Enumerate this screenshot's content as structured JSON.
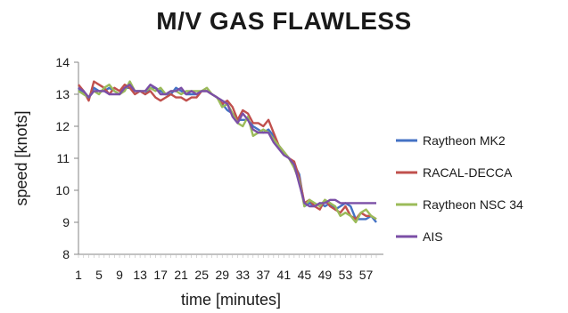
{
  "chart_data": {
    "type": "line",
    "title": "M/V GAS FLAWLESS",
    "xlabel": "time [minutes]",
    "ylabel": "speed [knots]",
    "ylim": [
      8,
      14
    ],
    "yticks": [
      8,
      9,
      10,
      11,
      12,
      13,
      14
    ],
    "xticks": [
      1,
      5,
      9,
      13,
      17,
      21,
      25,
      29,
      33,
      37,
      41,
      45,
      49,
      53,
      57
    ],
    "xlim": [
      1,
      59
    ],
    "grid": false,
    "legend_position": "right",
    "x": [
      1,
      2,
      3,
      4,
      5,
      6,
      7,
      8,
      9,
      10,
      11,
      12,
      13,
      14,
      15,
      16,
      17,
      18,
      19,
      20,
      21,
      22,
      23,
      24,
      25,
      26,
      27,
      28,
      29,
      30,
      31,
      32,
      33,
      34,
      35,
      36,
      37,
      38,
      39,
      40,
      41,
      42,
      43,
      44,
      45,
      46,
      47,
      48,
      49,
      50,
      51,
      52,
      53,
      54,
      55,
      56,
      57,
      58,
      59
    ],
    "series": [
      {
        "name": "Raytheon MK2",
        "color": "#4472c4",
        "values": [
          13.2,
          13.0,
          12.9,
          13.2,
          13.1,
          13.1,
          13.2,
          13.1,
          13.0,
          13.2,
          13.2,
          13.1,
          13.1,
          13.0,
          13.2,
          13.2,
          13.1,
          13.0,
          13.0,
          13.2,
          13.1,
          13.0,
          13.0,
          13.0,
          13.1,
          13.1,
          13.0,
          12.9,
          12.7,
          12.5,
          12.4,
          12.2,
          12.2,
          12.2,
          12.0,
          11.9,
          11.8,
          11.9,
          11.7,
          11.4,
          11.2,
          11.0,
          10.8,
          10.5,
          9.5,
          9.6,
          9.5,
          9.6,
          9.5,
          9.6,
          9.4,
          9.5,
          9.6,
          9.5,
          9.1,
          9.1,
          9.1,
          9.2,
          9.0
        ]
      },
      {
        "name": "RACAL-DECCA",
        "color": "#c0504d",
        "values": [
          13.3,
          13.1,
          12.8,
          13.4,
          13.3,
          13.2,
          13.0,
          13.2,
          13.1,
          13.3,
          13.2,
          13.0,
          13.1,
          13.0,
          13.1,
          12.9,
          12.8,
          12.9,
          13.0,
          12.9,
          12.9,
          12.8,
          12.9,
          12.9,
          13.1,
          13.1,
          13.0,
          12.9,
          12.7,
          12.8,
          12.6,
          12.2,
          12.5,
          12.4,
          12.1,
          12.1,
          12.0,
          12.2,
          11.8,
          11.4,
          11.2,
          11.0,
          10.9,
          10.4,
          9.6,
          9.7,
          9.5,
          9.4,
          9.7,
          9.5,
          9.4,
          9.3,
          9.5,
          9.2,
          9.1,
          9.3,
          9.2,
          9.2,
          9.1
        ]
      },
      {
        "name": "Raytheon NSC 34",
        "color": "#9bbb59",
        "values": [
          13.1,
          13.0,
          12.9,
          13.1,
          13.0,
          13.2,
          13.3,
          13.1,
          13.0,
          13.1,
          13.4,
          13.1,
          13.1,
          13.1,
          13.2,
          13.1,
          13.2,
          13.0,
          13.1,
          13.1,
          13.0,
          13.1,
          13.1,
          13.1,
          13.1,
          13.2,
          13.0,
          12.9,
          12.6,
          12.7,
          12.4,
          12.1,
          12.0,
          12.3,
          11.7,
          11.8,
          11.9,
          11.8,
          11.6,
          11.4,
          11.2,
          11.0,
          10.7,
          10.3,
          9.5,
          9.7,
          9.6,
          9.5,
          9.7,
          9.6,
          9.5,
          9.2,
          9.3,
          9.2,
          9.0,
          9.3,
          9.4,
          9.2,
          9.1
        ]
      },
      {
        "name": "AIS",
        "color": "#7b4fa6",
        "values": [
          13.2,
          13.1,
          12.9,
          13.1,
          13.1,
          13.1,
          13.0,
          13.0,
          13.0,
          13.2,
          13.3,
          13.1,
          13.1,
          13.1,
          13.3,
          13.2,
          13.0,
          13.0,
          13.1,
          13.1,
          13.2,
          13.0,
          13.1,
          13.0,
          13.1,
          13.1,
          13.0,
          12.9,
          12.8,
          12.7,
          12.3,
          12.1,
          12.4,
          12.2,
          11.9,
          11.8,
          11.8,
          11.8,
          11.5,
          11.3,
          11.1,
          11.0,
          10.8,
          10.2,
          9.6,
          9.5,
          9.5,
          9.6,
          9.6,
          9.7,
          9.7,
          9.6,
          9.6,
          9.6,
          9.6,
          9.6,
          9.6,
          9.6,
          9.6
        ]
      }
    ]
  }
}
